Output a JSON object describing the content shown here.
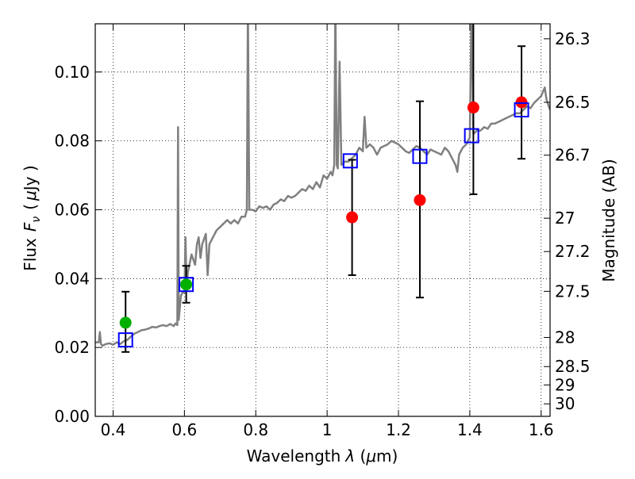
{
  "chart_data": {
    "type": "scatter",
    "xlabel": "Wavelength",
    "xlabel_symbol": "λ",
    "xlabel_unit_open": " (",
    "xlabel_unit_mu": "μ",
    "xlabel_unit_close": "m)",
    "ylabel_prefix": "Flux",
    "ylabel_symbol": "F",
    "ylabel_subscript": "ν",
    "ylabel_unit_open": "(",
    "ylabel_unit_mu": "μ",
    "ylabel_unit_close": "Jy )",
    "y2label": "Magnitude (AB)",
    "xlim": [
      0.35,
      1.625
    ],
    "ylim": [
      0.0,
      0.114
    ],
    "grid": true,
    "x_ticks": [
      {
        "value": 0.4,
        "label": "0.4"
      },
      {
        "value": 0.6,
        "label": "0.6"
      },
      {
        "value": 0.8,
        "label": "0.8"
      },
      {
        "value": 1.0,
        "label": "1"
      },
      {
        "value": 1.2,
        "label": "1.2"
      },
      {
        "value": 1.4,
        "label": "1.4"
      },
      {
        "value": 1.6,
        "label": "1.6"
      }
    ],
    "y_ticks": [
      {
        "value": 0.0,
        "label": "0.00"
      },
      {
        "value": 0.02,
        "label": "0.02"
      },
      {
        "value": 0.04,
        "label": "0.04"
      },
      {
        "value": 0.06,
        "label": "0.06"
      },
      {
        "value": 0.08,
        "label": "0.08"
      },
      {
        "value": 0.1,
        "label": "0.10"
      }
    ],
    "magnitude_ticks": [
      {
        "value": 26.3,
        "label": "26.3"
      },
      {
        "value": 26.5,
        "label": "26.5"
      },
      {
        "value": 26.7,
        "label": "26.7"
      },
      {
        "value": 27.0,
        "label": "27"
      },
      {
        "value": 27.2,
        "label": "27.2"
      },
      {
        "value": 27.5,
        "label": "27.5"
      },
      {
        "value": 28.0,
        "label": "28"
      },
      {
        "value": 28.5,
        "label": "28.5"
      },
      {
        "value": 29.0,
        "label": "29"
      },
      {
        "value": 30.0,
        "label": "30"
      }
    ],
    "colors": {
      "spectrum": "#808080",
      "model_squares": "#0000ff",
      "observed_red": "#ff0000",
      "observed_green": "#00b000",
      "errorbar": "#000000"
    },
    "spectrum": [
      [
        0.35,
        0.0215
      ],
      [
        0.36,
        0.0215
      ],
      [
        0.363,
        0.0245
      ],
      [
        0.366,
        0.021
      ],
      [
        0.37,
        0.0205
      ],
      [
        0.38,
        0.021
      ],
      [
        0.39,
        0.0212
      ],
      [
        0.4,
        0.0208
      ],
      [
        0.41,
        0.0215
      ],
      [
        0.42,
        0.021
      ],
      [
        0.43,
        0.0218
      ],
      [
        0.44,
        0.0222
      ],
      [
        0.45,
        0.0232
      ],
      [
        0.46,
        0.024
      ],
      [
        0.47,
        0.0245
      ],
      [
        0.48,
        0.025
      ],
      [
        0.49,
        0.0252
      ],
      [
        0.5,
        0.0255
      ],
      [
        0.51,
        0.026
      ],
      [
        0.52,
        0.0258
      ],
      [
        0.53,
        0.0262
      ],
      [
        0.54,
        0.0265
      ],
      [
        0.55,
        0.0262
      ],
      [
        0.56,
        0.0268
      ],
      [
        0.57,
        0.0262
      ],
      [
        0.575,
        0.027
      ],
      [
        0.58,
        0.0265
      ],
      [
        0.582,
        0.084
      ],
      [
        0.584,
        0.028
      ],
      [
        0.59,
        0.035
      ],
      [
        0.595,
        0.036
      ],
      [
        0.6,
        0.036
      ],
      [
        0.603,
        0.052
      ],
      [
        0.606,
        0.038
      ],
      [
        0.61,
        0.042
      ],
      [
        0.62,
        0.047
      ],
      [
        0.63,
        0.044
      ],
      [
        0.635,
        0.05
      ],
      [
        0.64,
        0.052
      ],
      [
        0.645,
        0.046
      ],
      [
        0.65,
        0.05
      ],
      [
        0.66,
        0.053
      ],
      [
        0.665,
        0.041
      ],
      [
        0.67,
        0.05
      ],
      [
        0.68,
        0.052
      ],
      [
        0.69,
        0.054
      ],
      [
        0.7,
        0.055
      ],
      [
        0.71,
        0.056
      ],
      [
        0.72,
        0.057
      ],
      [
        0.73,
        0.056
      ],
      [
        0.74,
        0.057
      ],
      [
        0.75,
        0.056
      ],
      [
        0.76,
        0.058
      ],
      [
        0.77,
        0.058
      ],
      [
        0.775,
        0.06
      ],
      [
        0.778,
        0.12
      ],
      [
        0.782,
        0.06
      ],
      [
        0.79,
        0.06
      ],
      [
        0.8,
        0.0595
      ],
      [
        0.81,
        0.061
      ],
      [
        0.82,
        0.0605
      ],
      [
        0.83,
        0.061
      ],
      [
        0.84,
        0.06
      ],
      [
        0.85,
        0.0615
      ],
      [
        0.86,
        0.062
      ],
      [
        0.87,
        0.063
      ],
      [
        0.88,
        0.0625
      ],
      [
        0.89,
        0.064
      ],
      [
        0.9,
        0.0635
      ],
      [
        0.91,
        0.064
      ],
      [
        0.92,
        0.065
      ],
      [
        0.93,
        0.066
      ],
      [
        0.94,
        0.0655
      ],
      [
        0.95,
        0.067
      ],
      [
        0.96,
        0.066
      ],
      [
        0.97,
        0.068
      ],
      [
        0.98,
        0.0665
      ],
      [
        0.99,
        0.07
      ],
      [
        1.0,
        0.069
      ],
      [
        1.01,
        0.071
      ],
      [
        1.015,
        0.07
      ],
      [
        1.02,
        0.073
      ],
      [
        1.023,
        0.12
      ],
      [
        1.027,
        0.073
      ],
      [
        1.03,
        0.072
      ],
      [
        1.035,
        0.103
      ],
      [
        1.04,
        0.073
      ],
      [
        1.05,
        0.074
      ],
      [
        1.06,
        0.074
      ],
      [
        1.07,
        0.075
      ],
      [
        1.08,
        0.076
      ],
      [
        1.09,
        0.078
      ],
      [
        1.1,
        0.077
      ],
      [
        1.105,
        0.087
      ],
      [
        1.11,
        0.078
      ],
      [
        1.12,
        0.079
      ],
      [
        1.13,
        0.078
      ],
      [
        1.14,
        0.076
      ],
      [
        1.15,
        0.078
      ],
      [
        1.16,
        0.0785
      ],
      [
        1.17,
        0.079
      ],
      [
        1.18,
        0.08
      ],
      [
        1.19,
        0.0795
      ],
      [
        1.2,
        0.079
      ],
      [
        1.21,
        0.078
      ],
      [
        1.22,
        0.077
      ],
      [
        1.23,
        0.0765
      ],
      [
        1.24,
        0.0775
      ],
      [
        1.25,
        0.0785
      ],
      [
        1.26,
        0.078
      ],
      [
        1.27,
        0.077
      ],
      [
        1.28,
        0.076
      ],
      [
        1.29,
        0.0775
      ],
      [
        1.3,
        0.077
      ],
      [
        1.31,
        0.0765
      ],
      [
        1.32,
        0.076
      ],
      [
        1.33,
        0.078
      ],
      [
        1.34,
        0.077
      ],
      [
        1.35,
        0.075
      ],
      [
        1.36,
        0.073
      ],
      [
        1.365,
        0.071
      ],
      [
        1.37,
        0.076
      ],
      [
        1.38,
        0.078
      ],
      [
        1.39,
        0.079
      ],
      [
        1.4,
        0.081
      ],
      [
        1.405,
        0.12
      ],
      [
        1.41,
        0.082
      ],
      [
        1.42,
        0.083
      ],
      [
        1.43,
        0.083
      ],
      [
        1.44,
        0.084
      ],
      [
        1.45,
        0.0835
      ],
      [
        1.46,
        0.085
      ],
      [
        1.47,
        0.085
      ],
      [
        1.48,
        0.0855
      ],
      [
        1.49,
        0.086
      ],
      [
        1.5,
        0.0865
      ],
      [
        1.51,
        0.087
      ],
      [
        1.52,
        0.0875
      ],
      [
        1.53,
        0.088
      ],
      [
        1.54,
        0.088
      ],
      [
        1.55,
        0.089
      ],
      [
        1.56,
        0.09
      ],
      [
        1.57,
        0.0895
      ],
      [
        1.58,
        0.091
      ],
      [
        1.59,
        0.092
      ],
      [
        1.6,
        0.093
      ],
      [
        1.61,
        0.0955
      ],
      [
        1.615,
        0.092
      ],
      [
        1.625,
        0.089
      ]
    ],
    "model_squares": [
      {
        "x": 0.435,
        "y": 0.0222
      },
      {
        "x": 0.605,
        "y": 0.0383
      },
      {
        "x": 1.065,
        "y": 0.0742
      },
      {
        "x": 1.26,
        "y": 0.0755
      },
      {
        "x": 1.405,
        "y": 0.0815
      },
      {
        "x": 1.545,
        "y": 0.089
      }
    ],
    "observed_points": [
      {
        "x": 0.435,
        "y": 0.0272,
        "err_low": 0.0187,
        "err_high": 0.0362,
        "color": "green"
      },
      {
        "x": 0.605,
        "y": 0.0383,
        "err_low": 0.033,
        "err_high": 0.0437,
        "color": "green"
      },
      {
        "x": 1.07,
        "y": 0.0578,
        "err_low": 0.041,
        "err_high": 0.0745,
        "color": "red"
      },
      {
        "x": 1.26,
        "y": 0.0628,
        "err_low": 0.0345,
        "err_high": 0.0915,
        "color": "red"
      },
      {
        "x": 1.41,
        "y": 0.0897,
        "err_low": 0.0645,
        "err_high": 0.115,
        "color": "red"
      },
      {
        "x": 1.545,
        "y": 0.0912,
        "err_low": 0.0748,
        "err_high": 0.1075,
        "color": "red"
      }
    ]
  }
}
